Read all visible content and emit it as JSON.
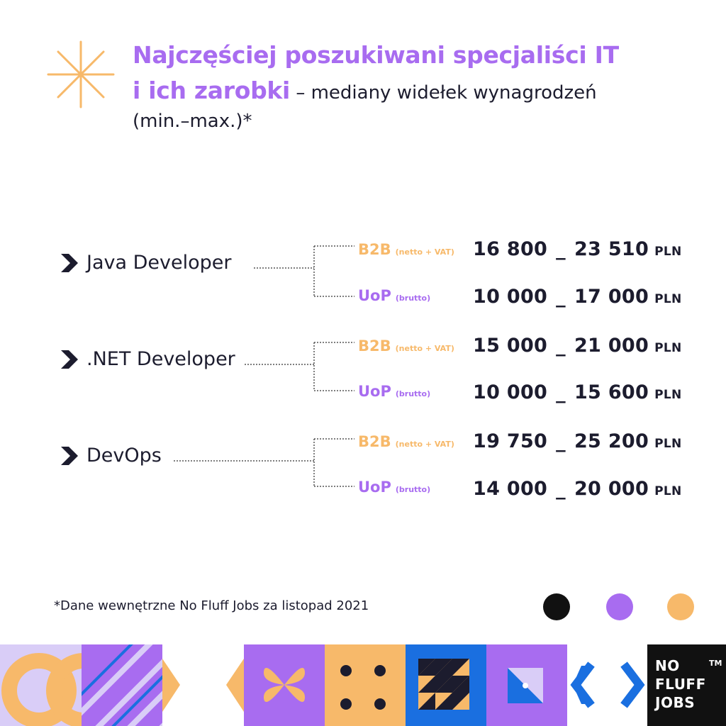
{
  "title": {
    "line1": "Najczęściej poszukiwani specjaliści IT",
    "line2_bold": "i ich zarobki",
    "line2_rest": " – mediany widełek wynagrodzeń",
    "line3": "(min.–max.)*"
  },
  "rows": [
    {
      "role": "Java Developer",
      "contracts": [
        {
          "type": "B2B",
          "note": "(netto + VAT)",
          "min": "16 800",
          "max": "23 510",
          "currency": "PLN"
        },
        {
          "type": "UoP",
          "note": "(brutto)",
          "min": "10 000",
          "max": "17 000",
          "currency": "PLN"
        }
      ]
    },
    {
      "role": ".NET Developer",
      "contracts": [
        {
          "type": "B2B",
          "note": "(netto + VAT)",
          "min": "15 000",
          "max": "21 000",
          "currency": "PLN"
        },
        {
          "type": "UoP",
          "note": "(brutto)",
          "min": "10 000",
          "max": "15 600",
          "currency": "PLN"
        }
      ]
    },
    {
      "role": "DevOps",
      "contracts": [
        {
          "type": "B2B",
          "note": "(netto + VAT)",
          "min": "19 750",
          "max": "25 200",
          "currency": "PLN"
        },
        {
          "type": "UoP",
          "note": "(brutto)",
          "min": "14 000",
          "max": "20 000",
          "currency": "PLN"
        }
      ]
    }
  ],
  "range_separator": "_",
  "footnote": "*Dane wewnętrzne No Fluff Jobs za listopad 2021",
  "logo": {
    "text": "NO FLUFF JOBS",
    "tm": "TM"
  },
  "colors": {
    "purple": "#a86cf0",
    "orange": "#f7b96a",
    "navy": "#1c1c2e",
    "blue": "#1a6fe0",
    "black": "#111111"
  }
}
